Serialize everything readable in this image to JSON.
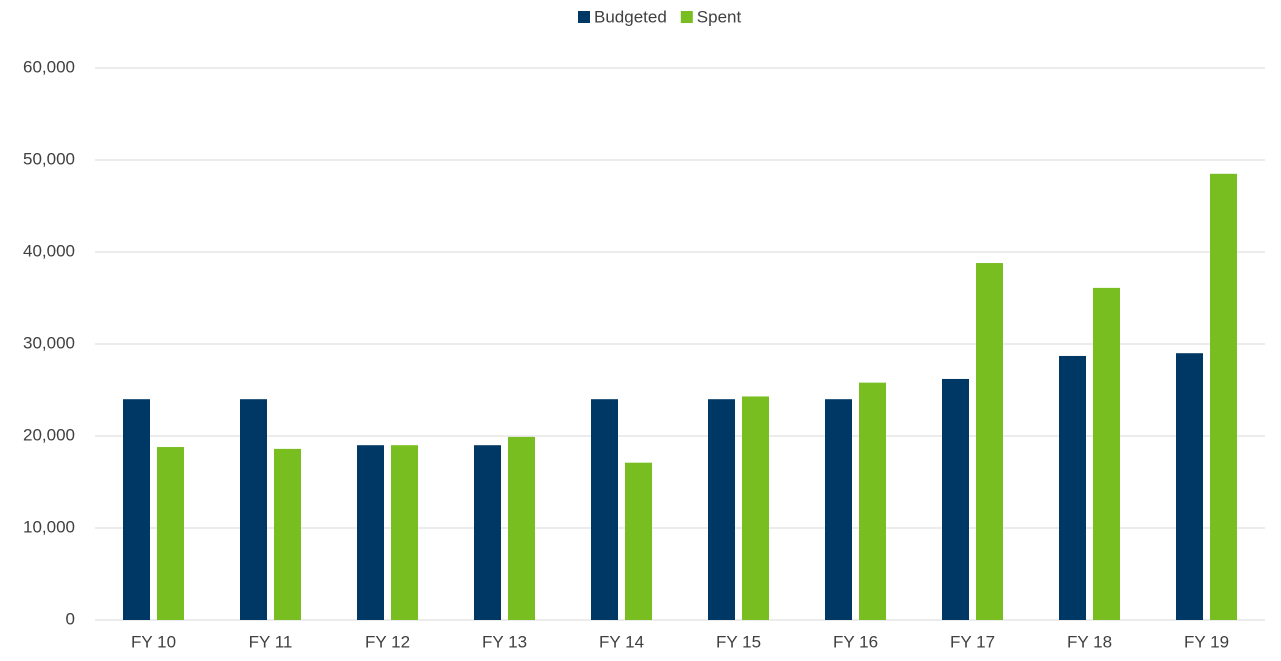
{
  "chart_data": {
    "type": "bar",
    "categories": [
      "FY 10",
      "FY 11",
      "FY 12",
      "FY 13",
      "FY 14",
      "FY 15",
      "FY 16",
      "FY 17",
      "FY 18",
      "FY 19"
    ],
    "series": [
      {
        "name": "Budgeted",
        "color": "#003865",
        "values": [
          24000,
          24000,
          19000,
          19000,
          24000,
          24000,
          24000,
          26200,
          28700,
          29000
        ]
      },
      {
        "name": "Spent",
        "color": "#78be20",
        "values": [
          18800,
          18600,
          19000,
          19900,
          17100,
          24300,
          25800,
          38800,
          36100,
          48500
        ]
      }
    ],
    "ylim": [
      0,
      60000
    ],
    "yticks": [
      0,
      {
        "value": 10000,
        "label": "10,000"
      },
      {
        "value": 20000,
        "label": "20,000"
      },
      {
        "value": 30000,
        "label": "30,000"
      },
      {
        "value": 40000,
        "label": "40,000"
      },
      {
        "value": 50000,
        "label": "50,000"
      },
      {
        "value": 60000,
        "label": "60,000"
      }
    ],
    "grid": true,
    "legend": "top"
  }
}
